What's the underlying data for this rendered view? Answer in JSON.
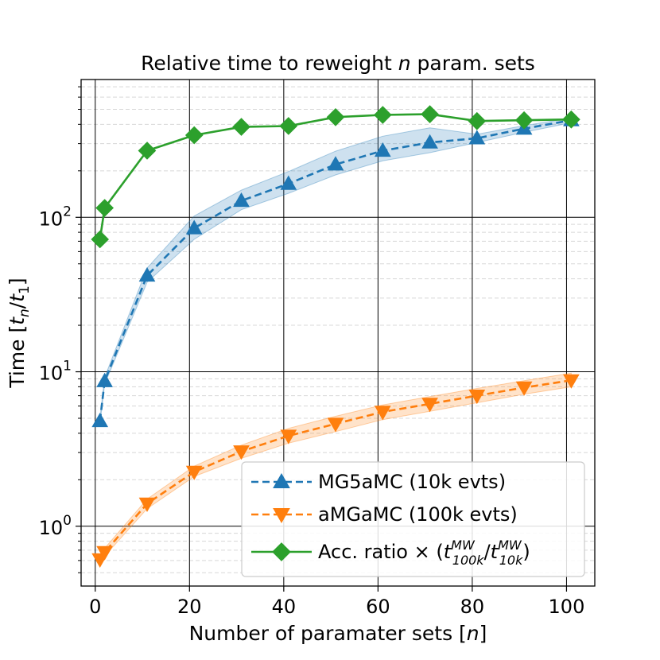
{
  "chart_data": {
    "type": "line",
    "title": "Relative time to reweight n param. sets",
    "title_parts": [
      "Relative time to reweight ",
      "n",
      " param. sets"
    ],
    "xlabel": "Number of paramater sets [n]",
    "xlabel_parts": [
      "Number of paramater sets [",
      "n",
      "]"
    ],
    "ylabel": "Time [t_n/t_1]",
    "ylabel_parts": [
      "Time [",
      "t",
      "n",
      "/",
      "t",
      "1",
      "]"
    ],
    "yscale": "log",
    "xlim": [
      -3,
      106
    ],
    "ylim": [
      0.41,
      780
    ],
    "xticks": [
      0,
      20,
      40,
      60,
      80,
      100
    ],
    "xtick_labels": [
      "0",
      "20",
      "40",
      "60",
      "80",
      "100"
    ],
    "yticks": [
      1,
      10,
      100
    ],
    "ytick_labels": [
      {
        "base": "10",
        "exp": "0"
      },
      {
        "base": "10",
        "exp": "1"
      },
      {
        "base": "10",
        "exp": "2"
      }
    ],
    "grid": {
      "major": true,
      "minor": true
    },
    "legend_position": "lower-right",
    "series": [
      {
        "name": "MG5aMC (10k evts)",
        "color": "#1f77b4",
        "linestyle": "dashed",
        "marker": "triangle-up",
        "x": [
          1,
          2,
          11,
          21,
          31,
          41,
          51,
          61,
          71,
          81,
          91,
          101
        ],
        "values": [
          4.8,
          8.7,
          42,
          85,
          128,
          165,
          220,
          270,
          305,
          325,
          375,
          425
        ],
        "band_low": [
          4.6,
          8.3,
          38,
          72,
          112,
          143,
          188,
          232,
          262,
          305,
          355,
          410
        ],
        "band_high": [
          5.0,
          9.2,
          47,
          102,
          150,
          198,
          268,
          335,
          380,
          345,
          392,
          440
        ]
      },
      {
        "name": "aMGaMC (100k evts)",
        "color": "#ff7f0e",
        "linestyle": "dashed",
        "marker": "triangle-down",
        "x": [
          1,
          2,
          11,
          21,
          31,
          41,
          51,
          61,
          71,
          81,
          91,
          101
        ],
        "values": [
          0.61,
          0.68,
          1.4,
          2.25,
          3.05,
          3.85,
          4.6,
          5.5,
          6.2,
          7.0,
          7.9,
          8.8
        ],
        "band_low": [
          0.58,
          0.64,
          1.3,
          2.1,
          2.75,
          3.45,
          4.1,
          4.9,
          5.55,
          6.3,
          7.15,
          8.0
        ],
        "band_high": [
          0.64,
          0.72,
          1.5,
          2.45,
          3.35,
          4.3,
          5.15,
          6.1,
          6.9,
          7.8,
          8.75,
          9.8
        ]
      },
      {
        "name": "Acc. ratio × (t100k^MW/t10k^MW)",
        "legend_parts": {
          "prefix": "Acc. ratio × (",
          "t": "t",
          "sup": "MW",
          "sub1": "100k",
          "slash": "/",
          "sub2": "10k",
          "suffix": ")"
        },
        "color": "#2ca02c",
        "linestyle": "solid",
        "marker": "diamond",
        "x": [
          1,
          2,
          11,
          21,
          31,
          41,
          51,
          61,
          71,
          81,
          91,
          101
        ],
        "values": [
          72,
          115,
          270,
          340,
          385,
          390,
          445,
          460,
          465,
          420,
          425,
          430
        ]
      }
    ]
  }
}
